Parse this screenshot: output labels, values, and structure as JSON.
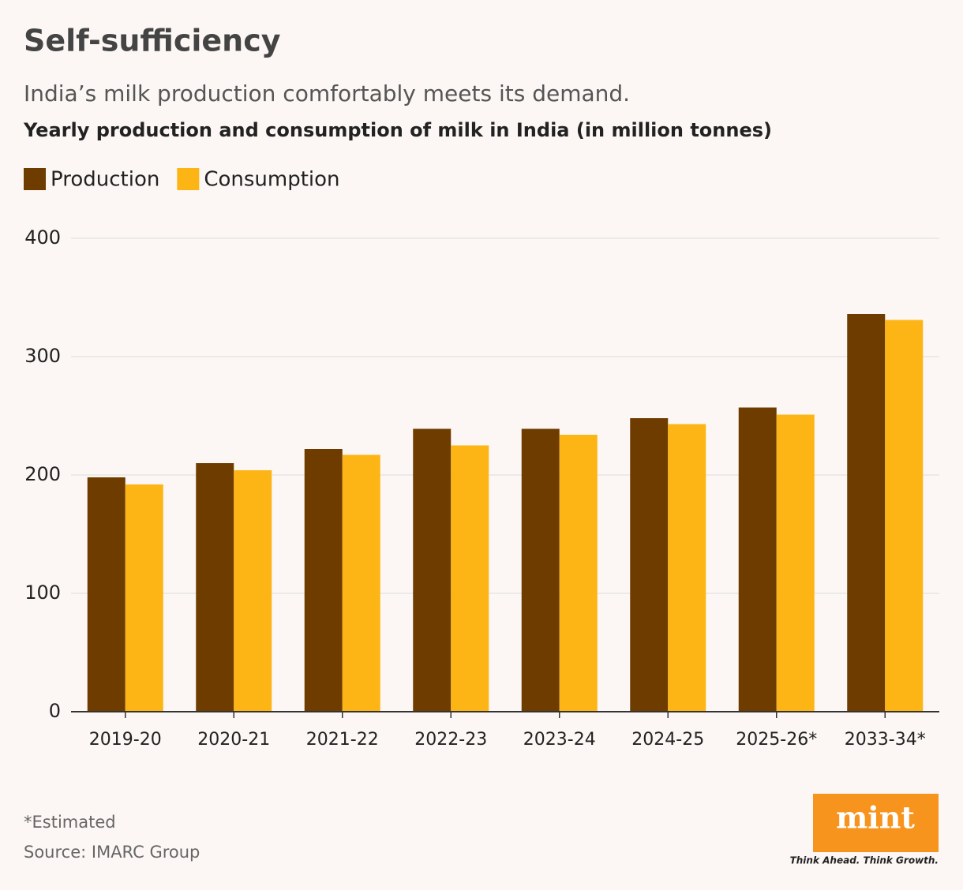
{
  "chart_data": {
    "type": "bar",
    "title": "Self-sufficiency",
    "subtitle": "India’s milk production comfortably meets its demand.",
    "chart_title": "Yearly production and consumption of milk in India (in million tonnes)",
    "categories": [
      "2019-20",
      "2020-21",
      "2021-22",
      "2022-23",
      "2023-24",
      "2024-25",
      "2025-26*",
      "2033-34*"
    ],
    "series": [
      {
        "name": "Production",
        "color": "#6f3c00",
        "values": [
          198,
          210,
          222,
          239,
          239,
          248,
          257,
          336
        ]
      },
      {
        "name": "Consumption",
        "color": "#fdb515",
        "values": [
          192,
          204,
          217,
          225,
          234,
          243,
          251,
          331
        ]
      }
    ],
    "ylim": [
      0,
      400
    ],
    "yticks": [
      0,
      100,
      200,
      300,
      400
    ],
    "grid": true,
    "legend": "top-left",
    "note": "*Estimated",
    "source": "Source: IMARC Group",
    "logo": "mint",
    "tagline": "Think Ahead. Think Growth."
  }
}
